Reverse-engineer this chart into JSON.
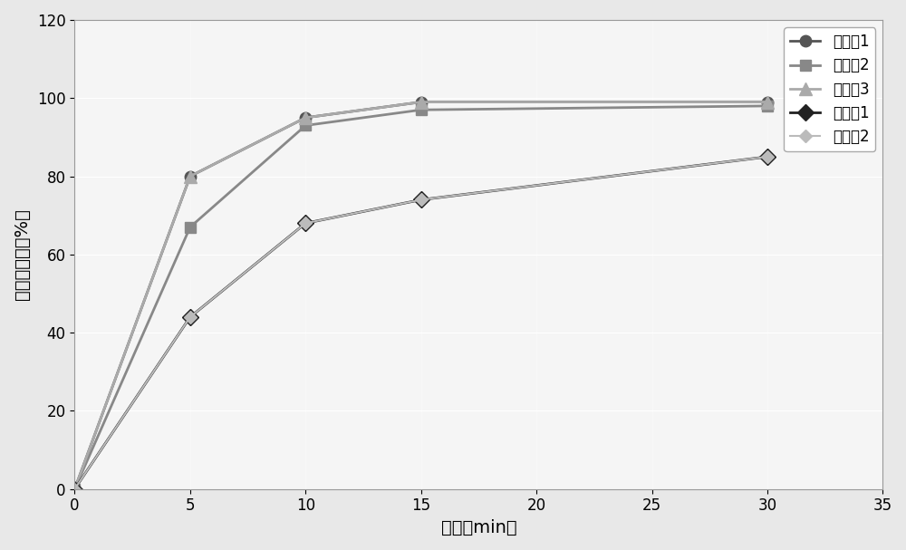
{
  "x": [
    0,
    5,
    10,
    15,
    30
  ],
  "series": [
    {
      "name": "实施例1",
      "values": [
        0,
        80,
        95,
        99,
        99
      ],
      "color": "#555555",
      "marker": "o",
      "markersize": 9,
      "linewidth": 2.0,
      "linestyle": "-"
    },
    {
      "name": "实施例2",
      "values": [
        0,
        67,
        93,
        97,
        98
      ],
      "color": "#888888",
      "marker": "s",
      "markersize": 9,
      "linewidth": 2.0,
      "linestyle": "-"
    },
    {
      "name": "实施例3",
      "values": [
        0,
        80,
        95,
        99,
        99
      ],
      "color": "#aaaaaa",
      "marker": "^",
      "markersize": 10,
      "linewidth": 2.0,
      "linestyle": "-"
    },
    {
      "name": "对比例1",
      "values": [
        0,
        44,
        68,
        74,
        85
      ],
      "color": "#222222",
      "marker": "D",
      "markersize": 9,
      "linewidth": 2.0,
      "linestyle": "-"
    },
    {
      "name": "对比例2",
      "values": [
        0,
        44,
        68,
        74,
        85
      ],
      "color": "#bbbbbb",
      "marker": "D",
      "markersize": 7,
      "linewidth": 1.5,
      "linestyle": "-"
    }
  ],
  "xlabel": "时间（min）",
  "ylabel": "累积溶出度（%）",
  "xlim": [
    0,
    35
  ],
  "ylim": [
    0,
    120
  ],
  "xticks": [
    0,
    5,
    10,
    15,
    20,
    25,
    30,
    35
  ],
  "yticks": [
    0,
    20,
    40,
    60,
    80,
    100,
    120
  ],
  "background_color": "#f0f0f0",
  "grid_color": "#ffffff",
  "figsize": [
    10.0,
    6.07
  ],
  "dpi": 100
}
